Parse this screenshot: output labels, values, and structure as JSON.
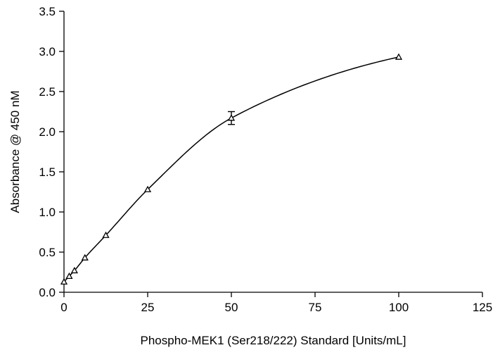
{
  "chart_data": {
    "type": "scatter",
    "title": "",
    "xlabel": "Phospho-MEK1 (Ser218/222) Standard [Units/mL]",
    "ylabel": "Absorbance @ 450 nM",
    "xlim": [
      0,
      125
    ],
    "ylim": [
      0,
      3.5
    ],
    "x_ticks": [
      "0",
      "25",
      "50",
      "75",
      "100",
      "125"
    ],
    "y_ticks": [
      "0.0",
      "0.5",
      "1.0",
      "1.5",
      "2.0",
      "2.5",
      "3.0",
      "3.5"
    ],
    "grid": false,
    "marker": "open-triangle",
    "fit_line": "smooth curve",
    "series": [
      {
        "points": [
          {
            "x": 0,
            "y": 0.13,
            "err": 0
          },
          {
            "x": 1.5625,
            "y": 0.2,
            "err": 0
          },
          {
            "x": 3.125,
            "y": 0.27,
            "err": 0
          },
          {
            "x": 6.25,
            "y": 0.43,
            "err": 0
          },
          {
            "x": 12.5,
            "y": 0.71,
            "err": 0
          },
          {
            "x": 25,
            "y": 1.28,
            "err": 0
          },
          {
            "x": 50,
            "y": 2.17,
            "err": 0.08
          },
          {
            "x": 100,
            "y": 2.93,
            "err": 0
          }
        ]
      }
    ]
  }
}
